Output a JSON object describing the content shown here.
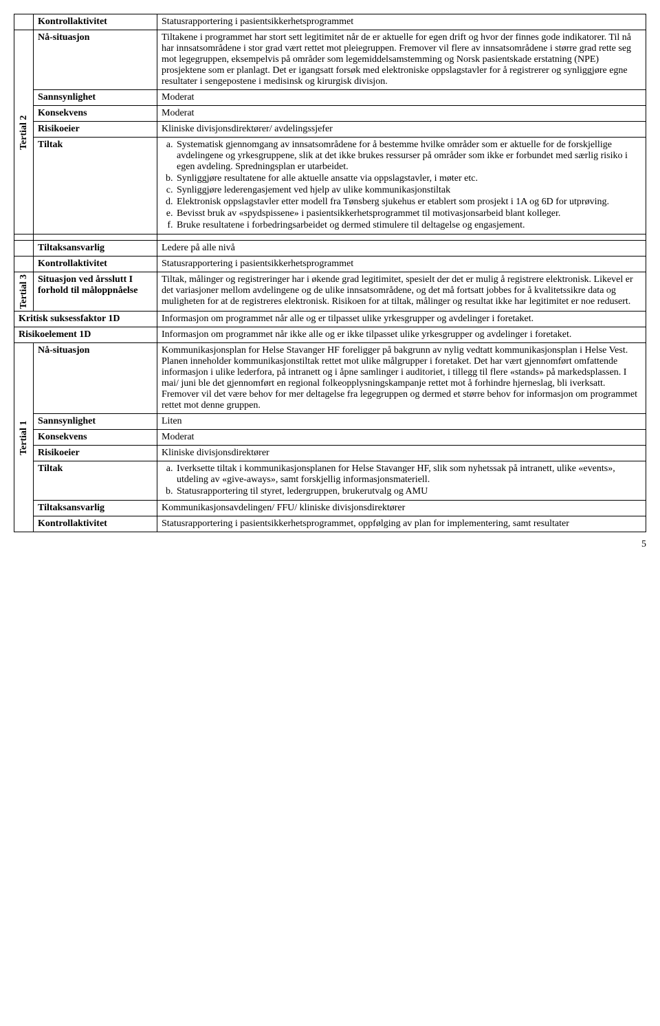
{
  "t2": {
    "sideLabel": "Tertial 2",
    "rows": {
      "kontrollaktivitet": {
        "label": "Kontrollaktivitet",
        "value": "Statusrapportering i pasientsikkerhetsprogrammet"
      },
      "naSituasjon": {
        "label": "Nå-situasjon",
        "value": "Tiltakene i programmet har stort sett legitimitet når de er aktuelle for egen drift og hvor der finnes gode indikatorer. Til nå har innsatsområdene i stor grad vært rettet mot pleiegruppen. Fremover vil flere av innsatsområdene i større grad rette seg mot legegruppen, eksempelvis på områder som legemiddelsamstemming og Norsk pasientskade erstatning (NPE) prosjektene som er planlagt. Det er igangsatt forsøk med elektroniske oppslagstavler for å registrerer og synliggjøre egne resultater i sengepostene i medisinsk og kirurgisk divisjon."
      },
      "sannsynlighet": {
        "label": "Sannsynlighet",
        "value": "Moderat"
      },
      "konsekvens": {
        "label": "Konsekvens",
        "value": "Moderat"
      },
      "risikoeier": {
        "label": "Risikoeier",
        "value": "Kliniske divisjonsdirektører/ avdelingssjefer"
      },
      "tiltak": {
        "label": "Tiltak",
        "items": [
          "Systematisk gjennomgang av innsatsområdene for å bestemme hvilke områder som er aktuelle for de forskjellige avdelingene og yrkesgruppene, slik at det ikke brukes ressurser på områder som ikke er forbundet med særlig risiko i egen avdeling. Spredningsplan er utarbeidet.",
          "Synliggjøre resultatene for alle aktuelle ansatte via oppslagstavler, i møter etc.",
          "Synliggjøre lederengasjement ved hjelp av ulike kommunikasjonstiltak",
          "Elektronisk oppslagstavler etter modell fra Tønsberg sjukehus er etablert som prosjekt i 1A og 6D for utprøving.",
          "Bevisst bruk av «spydspissene» i pasientsikkerhetsprogrammet til motivasjonsarbeid blant kolleger.",
          "Bruke resultatene i forbedringsarbeidet og dermed stimulere til deltagelse og engasjement."
        ]
      }
    }
  },
  "mid": {
    "tiltaksansvarlig": {
      "label": "Tiltaksansvarlig",
      "value": "Ledere på alle nivå"
    },
    "kontrollaktivitet": {
      "label": "Kontrollaktivitet",
      "value": "Statusrapportering i pasientsikkerhetsprogrammet"
    }
  },
  "t3": {
    "sideLabel": "Tertial 3",
    "situasjon": {
      "label": "Situasjon ved årsslutt I forhold til måloppnåelse",
      "value": "Tiltak, målinger og registreringer har i økende grad legitimitet, spesielt der det er mulig å registrere elektronisk. Likevel er det variasjoner mellom avdelingene og de ulike innsatsområdene, og det må fortsatt jobbes for å kvalitetssikre data og muligheten for at de registreres elektronisk. Risikoen for at tiltak, målinger og resultat ikke har legitimitet er noe redusert."
    }
  },
  "ksf": {
    "label": "Kritisk suksessfaktor 1D",
    "value": "Informasjon om programmet når alle og er tilpasset ulike yrkesgrupper og avdelinger i foretaket."
  },
  "risikoelement": {
    "label": "Risikoelement 1D",
    "value": "Informasjon om programmet når ikke alle og er ikke tilpasset ulike yrkesgrupper og avdelinger i foretaket."
  },
  "t1": {
    "sideLabel": "Tertial 1",
    "rows": {
      "naSituasjon": {
        "label": "Nå-situasjon",
        "value": "Kommunikasjonsplan for Helse Stavanger HF foreligger på bakgrunn av nylig vedtatt kommunikasjonsplan i Helse Vest. Planen inneholder kommunikasjonstiltak rettet mot ulike målgrupper i foretaket. Det har vært gjennomført omfattende informasjon i ulike lederfora, på intranett og i åpne samlinger i auditoriet, i tillegg til flere «stands» på markedsplassen. I mai/ juni ble det gjennomført en regional folkeopplysningskampanje rettet mot å forhindre hjerneslag, bli iverksatt. Fremover vil det være behov for mer deltagelse fra legegruppen og dermed et større behov for informasjon om programmet rettet mot denne gruppen."
      },
      "sannsynlighet": {
        "label": "Sannsynlighet",
        "value": "Liten"
      },
      "konsekvens": {
        "label": "Konsekvens",
        "value": "Moderat"
      },
      "risikoeier": {
        "label": "Risikoeier",
        "value": "Kliniske divisjonsdirektører"
      },
      "tiltak": {
        "label": "Tiltak",
        "items": [
          "Iverksette tiltak i kommunikasjonsplanen for Helse Stavanger HF, slik som nyhetssak på intranett, ulike «events», utdeling av «give-aways», samt forskjellig informasjonsmateriell.",
          "Statusrapportering til styret, ledergruppen, brukerutvalg og AMU"
        ]
      },
      "tiltaksansvarlig": {
        "label": "Tiltaksansvarlig",
        "value": "Kommunikasjonsavdelingen/ FFU/ kliniske divisjonsdirektører"
      },
      "kontrollaktivitet": {
        "label": "Kontrollaktivitet",
        "value": "Statusrapportering i pasientsikkerhetsprogrammet, oppfølging av plan for implementering, samt resultater"
      }
    }
  },
  "pageNumber": "5"
}
